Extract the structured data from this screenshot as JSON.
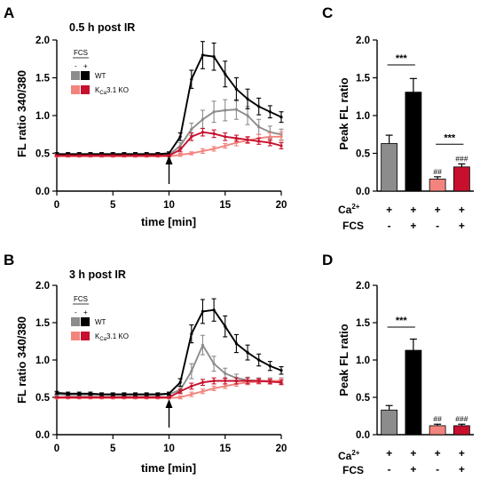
{
  "colors": {
    "wt_minus": "#8c8c8c",
    "wt_plus": "#000000",
    "ko_minus": "#f2847d",
    "ko_plus": "#c8102e"
  },
  "legend": {
    "fcs_label": "FCS",
    "minus": "-",
    "plus": "+",
    "wt_label": "WT",
    "ko_label_main": "K",
    "ko_label_sub": "Ca",
    "ko_label_tail": "3.1 KO"
  },
  "conditions": {
    "ca_label_main": "Ca",
    "ca_label_sup": "2+",
    "fcs_label": "FCS",
    "ca_signs": [
      "+",
      "+",
      "+",
      "+"
    ],
    "fcs_signs": [
      "-",
      "+",
      "-",
      "+"
    ]
  },
  "chart_data": [
    {
      "panel": "A",
      "type": "line",
      "title": "0.5 h post IR",
      "xlabel": "time [min]",
      "ylabel": "FL ratio 340/380",
      "xlim": [
        0,
        20
      ],
      "ylim": [
        0,
        2.0
      ],
      "xticks": [
        "0",
        "5",
        "10",
        "15",
        "20"
      ],
      "yticks": [
        "0.0",
        "0.5",
        "1.0",
        "1.5",
        "2.0"
      ],
      "arrow_x": 10,
      "x": [
        0,
        1,
        2,
        3,
        4,
        5,
        6,
        7,
        8,
        9,
        10,
        11,
        12,
        13,
        14,
        15,
        16,
        17,
        18,
        19,
        20
      ],
      "series": [
        {
          "name": "WT -",
          "color_key": "wt_minus",
          "values": [
            0.48,
            0.48,
            0.48,
            0.48,
            0.48,
            0.48,
            0.48,
            0.48,
            0.48,
            0.48,
            0.48,
            0.6,
            0.82,
            0.95,
            1.05,
            1.07,
            1.08,
            1.0,
            0.85,
            0.78,
            0.75
          ],
          "errors": [
            0.02,
            0.02,
            0.02,
            0.02,
            0.02,
            0.02,
            0.02,
            0.02,
            0.02,
            0.02,
            0.02,
            0.04,
            0.08,
            0.12,
            0.14,
            0.14,
            0.13,
            0.12,
            0.1,
            0.08,
            0.07
          ]
        },
        {
          "name": "WT +",
          "color_key": "wt_plus",
          "values": [
            0.49,
            0.49,
            0.49,
            0.49,
            0.49,
            0.49,
            0.49,
            0.49,
            0.49,
            0.49,
            0.5,
            0.72,
            1.48,
            1.8,
            1.78,
            1.55,
            1.35,
            1.22,
            1.12,
            1.05,
            0.98
          ],
          "errors": [
            0.02,
            0.02,
            0.02,
            0.02,
            0.02,
            0.02,
            0.02,
            0.02,
            0.02,
            0.02,
            0.02,
            0.05,
            0.12,
            0.18,
            0.18,
            0.17,
            0.15,
            0.13,
            0.11,
            0.08,
            0.07
          ]
        },
        {
          "name": "KCa3.1 KO -",
          "color_key": "ko_minus",
          "values": [
            0.46,
            0.46,
            0.46,
            0.46,
            0.46,
            0.46,
            0.46,
            0.46,
            0.46,
            0.46,
            0.46,
            0.48,
            0.5,
            0.53,
            0.56,
            0.6,
            0.64,
            0.67,
            0.7,
            0.72,
            0.72
          ],
          "errors": [
            0.01,
            0.01,
            0.01,
            0.01,
            0.01,
            0.01,
            0.01,
            0.01,
            0.01,
            0.01,
            0.01,
            0.02,
            0.02,
            0.03,
            0.03,
            0.03,
            0.04,
            0.04,
            0.05,
            0.05,
            0.06
          ]
        },
        {
          "name": "KCa3.1 KO +",
          "color_key": "ko_plus",
          "values": [
            0.47,
            0.47,
            0.47,
            0.47,
            0.47,
            0.47,
            0.47,
            0.47,
            0.47,
            0.47,
            0.47,
            0.55,
            0.72,
            0.78,
            0.76,
            0.72,
            0.7,
            0.68,
            0.66,
            0.64,
            0.6
          ],
          "errors": [
            0.01,
            0.01,
            0.01,
            0.01,
            0.01,
            0.01,
            0.01,
            0.01,
            0.01,
            0.01,
            0.01,
            0.03,
            0.05,
            0.05,
            0.05,
            0.05,
            0.04,
            0.04,
            0.04,
            0.04,
            0.04
          ]
        }
      ]
    },
    {
      "panel": "B",
      "type": "line",
      "title": "3 h post IR",
      "xlabel": "time [min]",
      "ylabel": "FL ratio 340/380",
      "xlim": [
        0,
        20
      ],
      "ylim": [
        0,
        2.0
      ],
      "xticks": [
        "0",
        "5",
        "10",
        "15",
        "20"
      ],
      "yticks": [
        "0.0",
        "0.5",
        "1.0",
        "1.5",
        "2.0"
      ],
      "arrow_x": 10,
      "x": [
        0,
        1,
        2,
        3,
        4,
        5,
        6,
        7,
        8,
        9,
        10,
        11,
        12,
        13,
        14,
        15,
        16,
        17,
        18,
        19,
        20
      ],
      "series": [
        {
          "name": "WT -",
          "color_key": "wt_minus",
          "values": [
            0.54,
            0.53,
            0.53,
            0.53,
            0.53,
            0.53,
            0.53,
            0.53,
            0.53,
            0.53,
            0.54,
            0.6,
            0.85,
            1.2,
            0.95,
            0.82,
            0.76,
            0.73,
            0.72,
            0.72,
            0.72
          ],
          "errors": [
            0.02,
            0.02,
            0.02,
            0.02,
            0.02,
            0.02,
            0.02,
            0.02,
            0.02,
            0.02,
            0.02,
            0.04,
            0.1,
            0.13,
            0.1,
            0.07,
            0.05,
            0.04,
            0.04,
            0.04,
            0.04
          ]
        },
        {
          "name": "WT +",
          "color_key": "wt_plus",
          "values": [
            0.56,
            0.55,
            0.55,
            0.55,
            0.54,
            0.54,
            0.54,
            0.54,
            0.54,
            0.54,
            0.55,
            0.7,
            1.35,
            1.65,
            1.67,
            1.45,
            1.22,
            1.1,
            1.0,
            0.92,
            0.86
          ],
          "errors": [
            0.02,
            0.02,
            0.02,
            0.02,
            0.02,
            0.02,
            0.02,
            0.02,
            0.02,
            0.02,
            0.02,
            0.05,
            0.12,
            0.16,
            0.15,
            0.14,
            0.12,
            0.1,
            0.08,
            0.06,
            0.05
          ]
        },
        {
          "name": "KCa3.1 KO -",
          "color_key": "ko_minus",
          "values": [
            0.49,
            0.49,
            0.49,
            0.49,
            0.49,
            0.49,
            0.49,
            0.49,
            0.49,
            0.49,
            0.49,
            0.5,
            0.54,
            0.58,
            0.62,
            0.65,
            0.68,
            0.7,
            0.71,
            0.72,
            0.72
          ],
          "errors": [
            0.01,
            0.01,
            0.01,
            0.01,
            0.01,
            0.01,
            0.01,
            0.01,
            0.01,
            0.01,
            0.01,
            0.02,
            0.03,
            0.03,
            0.03,
            0.03,
            0.03,
            0.03,
            0.03,
            0.03,
            0.03
          ]
        },
        {
          "name": "KCa3.1 KO +",
          "color_key": "ko_plus",
          "values": [
            0.5,
            0.5,
            0.5,
            0.5,
            0.5,
            0.5,
            0.5,
            0.5,
            0.5,
            0.5,
            0.5,
            0.58,
            0.65,
            0.7,
            0.72,
            0.72,
            0.72,
            0.72,
            0.72,
            0.71,
            0.7
          ],
          "errors": [
            0.01,
            0.01,
            0.01,
            0.01,
            0.01,
            0.01,
            0.01,
            0.01,
            0.01,
            0.01,
            0.01,
            0.03,
            0.04,
            0.04,
            0.04,
            0.04,
            0.04,
            0.04,
            0.03,
            0.03,
            0.03
          ]
        }
      ]
    },
    {
      "panel": "C",
      "type": "bar",
      "ylabel": "Peak FL ratio",
      "ylim": [
        0,
        2.0
      ],
      "yticks": [
        "0.0",
        "0.5",
        "1.0",
        "1.5",
        "2.0"
      ],
      "categories": [
        "WT -",
        "WT +",
        "KCa3.1 KO -",
        "KCa3.1 KO +"
      ],
      "color_keys": [
        "wt_minus",
        "wt_plus",
        "ko_minus",
        "ko_plus"
      ],
      "values": [
        0.63,
        1.31,
        0.16,
        0.32
      ],
      "errors": [
        0.11,
        0.18,
        0.03,
        0.04
      ],
      "hash_labels": [
        "",
        "",
        "##",
        "###"
      ],
      "significance": [
        {
          "from": 0,
          "to": 1,
          "label": "***",
          "y": 1.67
        },
        {
          "from": 2,
          "to": 3,
          "label": "***",
          "y": 0.62
        }
      ]
    },
    {
      "panel": "D",
      "type": "bar",
      "ylabel": "Peak FL ratio",
      "ylim": [
        0,
        2.0
      ],
      "yticks": [
        "0.0",
        "0.5",
        "1.0",
        "1.5",
        "2.0"
      ],
      "categories": [
        "WT -",
        "WT +",
        "KCa3.1 KO -",
        "KCa3.1 KO +"
      ],
      "color_keys": [
        "wt_minus",
        "wt_plus",
        "ko_minus",
        "ko_plus"
      ],
      "values": [
        0.33,
        1.13,
        0.12,
        0.12
      ],
      "errors": [
        0.06,
        0.15,
        0.02,
        0.02
      ],
      "hash_labels": [
        "",
        "",
        "##",
        "###"
      ],
      "significance": [
        {
          "from": 0,
          "to": 1,
          "label": "***",
          "y": 1.44
        }
      ]
    }
  ]
}
